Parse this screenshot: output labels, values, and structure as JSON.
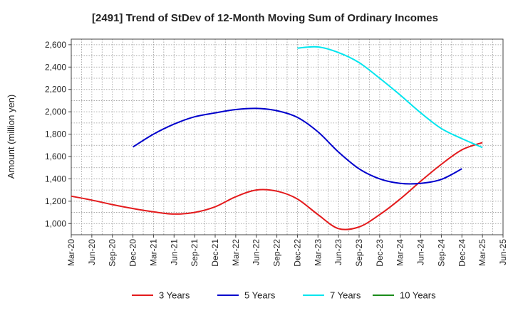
{
  "chart_data": {
    "type": "line",
    "title": "[2491]  Trend of StDev of 12-Month Moving Sum of Ordinary Incomes",
    "ylabel": "Amount (million yen)",
    "xlabel": "",
    "categories": [
      "Mar-20",
      "Jun-20",
      "Sep-20",
      "Dec-20",
      "Mar-21",
      "Jun-21",
      "Sep-21",
      "Dec-21",
      "Mar-22",
      "Jun-22",
      "Sep-22",
      "Dec-22",
      "Mar-23",
      "Jun-23",
      "Sep-23",
      "Dec-23",
      "Mar-24",
      "Jun-24",
      "Sep-24",
      "Dec-24",
      "Mar-25",
      "Jun-25"
    ],
    "ylim": [
      900,
      2650
    ],
    "yticks": [
      1000,
      1200,
      1400,
      1600,
      1800,
      2000,
      2200,
      2400,
      2600
    ],
    "ytick_labels": [
      "1,000",
      "1,200",
      "1,400",
      "1,600",
      "1,800",
      "2,000",
      "2,200",
      "2,400",
      "2,600"
    ],
    "grid": true,
    "legend_position": "bottom",
    "series": [
      {
        "name": "3 Years",
        "color": "#e31a1c",
        "values": [
          1245,
          1210,
          1170,
          1135,
          1105,
          1085,
          1100,
          1150,
          1240,
          1300,
          1290,
          1220,
          1080,
          955,
          970,
          1080,
          1220,
          1380,
          1530,
          1660,
          1725,
          null
        ]
      },
      {
        "name": "5 Years",
        "color": "#0000cc",
        "values": [
          null,
          null,
          null,
          1685,
          1800,
          1890,
          1955,
          1990,
          2020,
          2030,
          2010,
          1950,
          1820,
          1640,
          1490,
          1400,
          1360,
          1360,
          1395,
          1490,
          null,
          null
        ]
      },
      {
        "name": "7 Years",
        "color": "#00e5ee",
        "values": [
          null,
          null,
          null,
          null,
          null,
          null,
          null,
          null,
          null,
          null,
          null,
          2570,
          2580,
          2530,
          2440,
          2300,
          2150,
          1990,
          1850,
          1760,
          1680,
          null
        ]
      },
      {
        "name": "10 Years",
        "color": "#1a8c1a",
        "values": [
          null,
          null,
          null,
          null,
          null,
          null,
          null,
          null,
          null,
          null,
          null,
          null,
          null,
          null,
          null,
          null,
          null,
          null,
          null,
          null,
          null,
          null
        ]
      }
    ]
  }
}
